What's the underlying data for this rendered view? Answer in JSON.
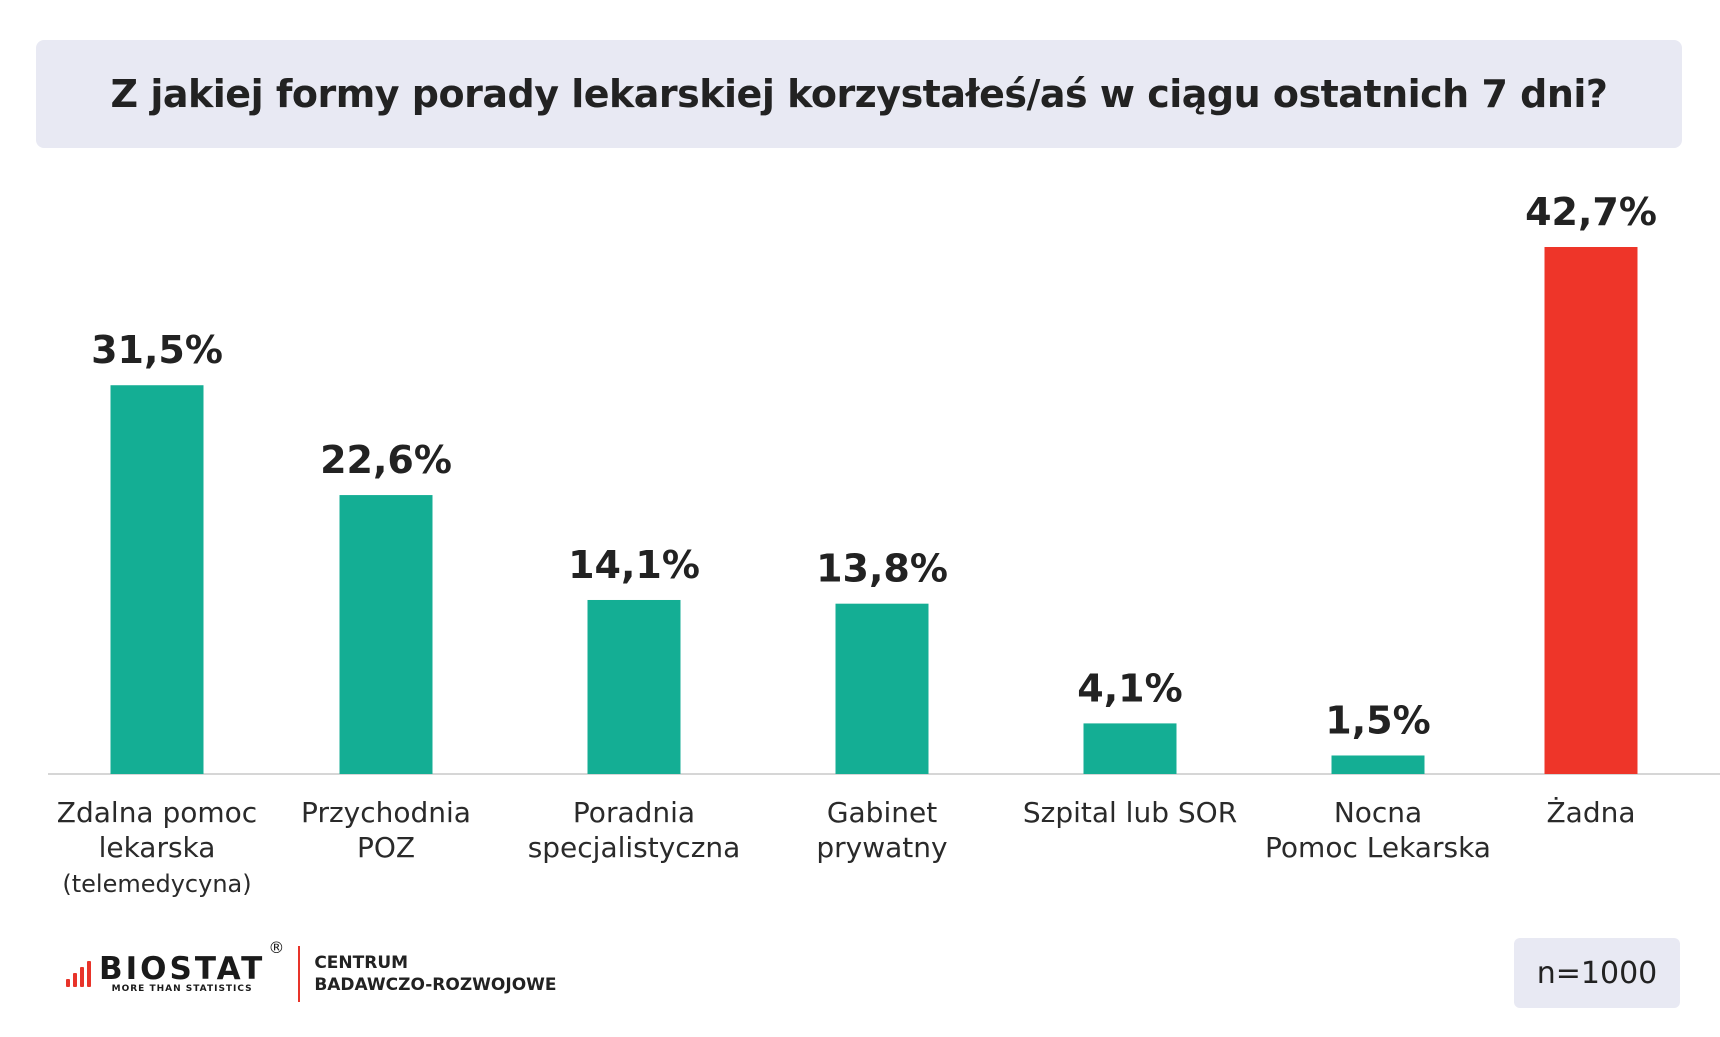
{
  "title": "Z jakiej formy porady lekarskiej korzystałeś/aś w ciągu ostatnich 7 dni?",
  "chart_data": {
    "type": "bar",
    "categories": [
      [
        "Zdalna pomoc",
        "lekarska",
        "(telemedycyna)"
      ],
      [
        "Przychodnia",
        "POZ"
      ],
      [
        "Poradnia",
        "specjalistyczna"
      ],
      [
        "Gabinet",
        "prywatny"
      ],
      [
        "Szpital lub SOR"
      ],
      [
        "Nocna",
        "Pomoc Lekarska"
      ],
      [
        "Żadna"
      ]
    ],
    "values": [
      31.5,
      22.6,
      14.1,
      13.8,
      4.1,
      1.5,
      42.7
    ],
    "labels": [
      "31,5%",
      "22,6%",
      "14,1%",
      "13,8%",
      "4,1%",
      "1,5%",
      "42,7%"
    ],
    "colors": [
      "#14ae94",
      "#14ae94",
      "#14ae94",
      "#14ae94",
      "#14ae94",
      "#14ae94",
      "#ee3529"
    ],
    "ylim": [
      0,
      42.7
    ],
    "grid": false,
    "legend": "none"
  },
  "footer": {
    "logo_word": "BIOSTAT",
    "logo_reg": "®",
    "logo_tagline": "MORE THAN STATISTICS",
    "center_line1": "CENTRUM",
    "center_line2": "BADAWCZO-ROZWOJOWE",
    "sample": "n=1000"
  },
  "accent_color": "#ee3529",
  "bar_color": "#14ae94"
}
